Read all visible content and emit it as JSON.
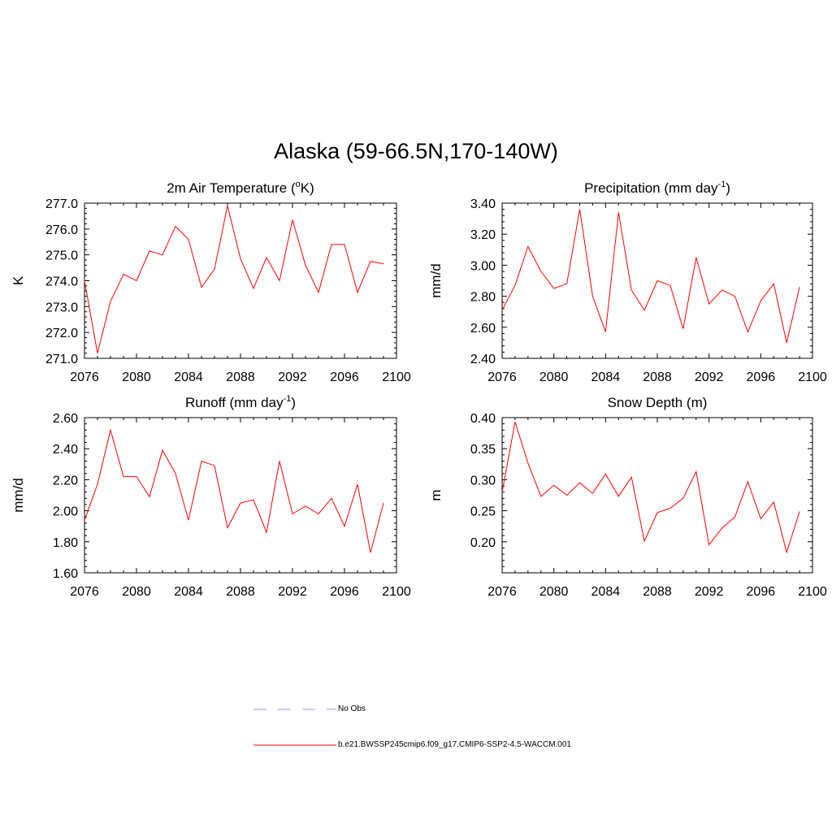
{
  "title": "Alaska (59-66.5N,170-140W)",
  "colors": {
    "model": "#ff0000",
    "obs": "#9999dd"
  },
  "legend": {
    "obs_label": "No Obs",
    "model_label": "b.e21.BWSSP245cmip6.f09_g17.CMIP6-SSP2-4.5-WACCM.001"
  },
  "chart_data": [
    {
      "type": "line",
      "title_main": "2m Air Temperature (",
      "title_sup": "o",
      "title_end": "K)",
      "ylabel": "K",
      "xlim": [
        2076,
        2100
      ],
      "ylim": [
        271.0,
        277.0
      ],
      "yticks": [
        "271.0",
        "272.0",
        "273.0",
        "274.0",
        "275.0",
        "276.0",
        "277.0"
      ],
      "xticks": [
        "2076",
        "2080",
        "2084",
        "2088",
        "2092",
        "2096",
        "2100"
      ],
      "x": [
        2076,
        2077,
        2078,
        2079,
        2080,
        2081,
        2082,
        2083,
        2084,
        2085,
        2086,
        2087,
        2088,
        2089,
        2090,
        2091,
        2092,
        2093,
        2094,
        2095,
        2096,
        2097,
        2098,
        2099
      ],
      "series": [
        {
          "values": [
            274.0,
            271.2,
            273.2,
            274.25,
            274.0,
            275.15,
            275.0,
            276.1,
            275.6,
            273.75,
            274.45,
            276.9,
            274.85,
            273.7,
            274.9,
            274.0,
            276.35,
            274.6,
            273.55,
            275.4,
            275.4,
            273.55,
            274.75,
            274.65
          ]
        }
      ]
    },
    {
      "type": "line",
      "title_main": "Precipitation (mm day",
      "title_sup": "-1",
      "title_end": ")",
      "ylabel": "mm/d",
      "xlim": [
        2076,
        2100
      ],
      "ylim": [
        2.4,
        3.4
      ],
      "yticks": [
        "2.40",
        "2.60",
        "2.80",
        "3.00",
        "3.20",
        "3.40"
      ],
      "xticks": [
        "2076",
        "2080",
        "2084",
        "2088",
        "2092",
        "2096",
        "2100"
      ],
      "x": [
        2076,
        2077,
        2078,
        2079,
        2080,
        2081,
        2082,
        2083,
        2084,
        2085,
        2086,
        2087,
        2088,
        2089,
        2090,
        2091,
        2092,
        2093,
        2094,
        2095,
        2096,
        2097,
        2098,
        2099
      ],
      "series": [
        {
          "values": [
            2.71,
            2.87,
            3.12,
            2.96,
            2.85,
            2.88,
            3.36,
            2.8,
            2.57,
            3.34,
            2.84,
            2.71,
            2.9,
            2.87,
            2.59,
            3.05,
            2.75,
            2.84,
            2.8,
            2.57,
            2.77,
            2.88,
            2.5,
            2.86
          ]
        }
      ]
    },
    {
      "type": "line",
      "title_main": "Runoff (mm day",
      "title_sup": "-1",
      "title_end": ")",
      "ylabel": "mm/d",
      "xlim": [
        2076,
        2100
      ],
      "ylim": [
        1.6,
        2.6
      ],
      "yticks": [
        "1.60",
        "1.80",
        "2.00",
        "2.20",
        "2.40",
        "2.60"
      ],
      "xticks": [
        "2076",
        "2080",
        "2084",
        "2088",
        "2092",
        "2096",
        "2100"
      ],
      "x": [
        2076,
        2077,
        2078,
        2079,
        2080,
        2081,
        2082,
        2083,
        2084,
        2085,
        2086,
        2087,
        2088,
        2089,
        2090,
        2091,
        2092,
        2093,
        2094,
        2095,
        2096,
        2097,
        2098,
        2099
      ],
      "series": [
        {
          "values": [
            1.94,
            2.17,
            2.52,
            2.22,
            2.22,
            2.09,
            2.39,
            2.24,
            1.94,
            2.32,
            2.29,
            1.89,
            2.05,
            2.07,
            1.86,
            2.32,
            1.98,
            2.03,
            1.98,
            2.08,
            1.9,
            2.17,
            1.73,
            2.05
          ]
        }
      ]
    },
    {
      "type": "line",
      "title_main": "Snow Depth (m)",
      "title_sup": "",
      "title_end": "",
      "ylabel": "m",
      "xlim": [
        2076,
        2100
      ],
      "ylim": [
        0.15,
        0.4
      ],
      "yticks": [
        "0.20",
        "0.25",
        "0.30",
        "0.35",
        "0.40"
      ],
      "xticks": [
        "2076",
        "2080",
        "2084",
        "2088",
        "2092",
        "2096",
        "2100"
      ],
      "x": [
        2076,
        2077,
        2078,
        2079,
        2080,
        2081,
        2082,
        2083,
        2084,
        2085,
        2086,
        2087,
        2088,
        2089,
        2090,
        2091,
        2092,
        2093,
        2094,
        2095,
        2096,
        2097,
        2098,
        2099
      ],
      "series": [
        {
          "values": [
            0.28,
            0.393,
            0.327,
            0.273,
            0.291,
            0.275,
            0.295,
            0.278,
            0.309,
            0.273,
            0.304,
            0.201,
            0.247,
            0.254,
            0.27,
            0.313,
            0.195,
            0.222,
            0.24,
            0.297,
            0.237,
            0.264,
            0.183,
            0.249
          ]
        }
      ]
    }
  ]
}
